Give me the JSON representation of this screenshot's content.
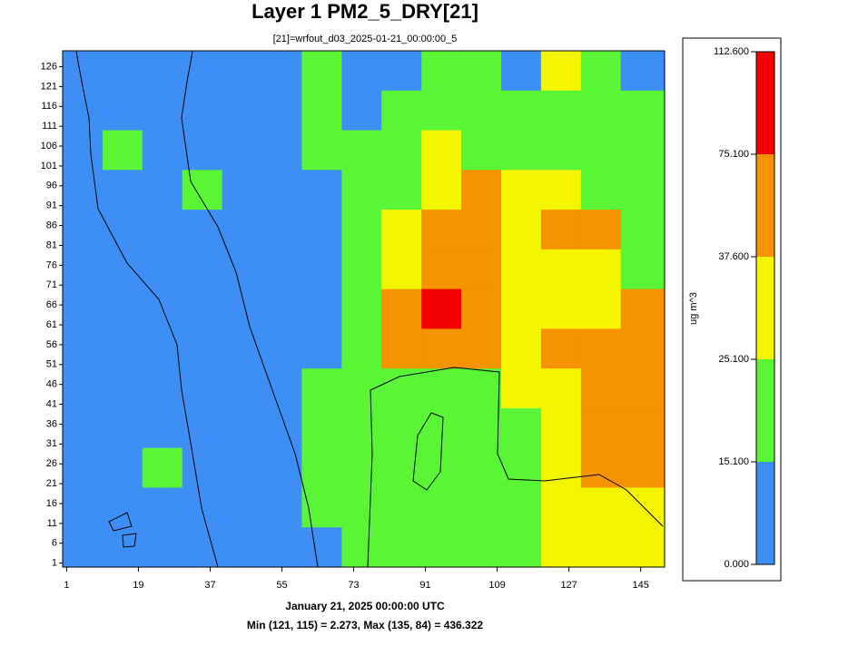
{
  "chart_data": {
    "type": "heatmap",
    "title": "Layer 1 PM2_5_DRY[21]",
    "subtitle": "[21]=wrfout_d03_2025-01-21_00:00:00_5",
    "footer": "January 21, 2025 00:00:00 UTC",
    "stats": "Min (121, 115) = 2.273, Max (135, 84) = 436.322",
    "colorbar_label": "ug m^3",
    "xlim": [
      0,
      151
    ],
    "ylim": [
      0,
      130
    ],
    "xticks": [
      1,
      19,
      37,
      55,
      73,
      91,
      109,
      127,
      145
    ],
    "yticks": [
      1,
      6,
      11,
      16,
      21,
      26,
      31,
      36,
      41,
      46,
      51,
      56,
      61,
      66,
      71,
      76,
      81,
      86,
      91,
      96,
      101,
      106,
      111,
      116,
      121,
      126
    ],
    "levels": [
      {
        "value": 0,
        "label": "0.000"
      },
      {
        "value": 15.1,
        "label": "15.100"
      },
      {
        "value": 25.1,
        "label": "25.100"
      },
      {
        "value": 37.6,
        "label": "37.600"
      },
      {
        "value": 75.1,
        "label": "75.100"
      },
      {
        "value": 112.6,
        "label": "112.600"
      }
    ],
    "colors": [
      "#3d8ff5",
      "#5af534",
      "#f5f500",
      "#f59300",
      "#f50000"
    ],
    "xbins": [
      0,
      10,
      20,
      30,
      40,
      50,
      60,
      70,
      80,
      90,
      100,
      110,
      120,
      130,
      140,
      151
    ],
    "ybins": [
      130,
      120,
      110,
      100,
      90,
      80,
      70,
      60,
      50,
      40,
      30,
      20,
      10,
      0
    ],
    "z": [
      [
        10,
        10,
        10,
        10,
        10,
        10,
        20,
        10,
        10,
        20,
        20,
        10,
        30,
        20,
        10
      ],
      [
        10,
        10,
        10,
        10,
        10,
        10,
        20,
        10,
        20,
        20,
        20,
        20,
        20,
        20,
        20
      ],
      [
        10,
        20,
        10,
        10,
        10,
        10,
        20,
        20,
        20,
        30,
        20,
        20,
        20,
        20,
        20
      ],
      [
        10,
        10,
        10,
        20,
        10,
        10,
        10,
        20,
        20,
        30,
        50,
        30,
        30,
        20,
        20
      ],
      [
        10,
        10,
        10,
        10,
        10,
        10,
        10,
        20,
        30,
        50,
        50,
        30,
        50,
        50,
        20
      ],
      [
        10,
        10,
        10,
        10,
        10,
        10,
        10,
        20,
        30,
        50,
        50,
        30,
        30,
        30,
        20
      ],
      [
        10,
        10,
        10,
        10,
        10,
        10,
        10,
        20,
        50,
        80,
        50,
        30,
        30,
        30,
        50
      ],
      [
        10,
        10,
        10,
        10,
        10,
        10,
        10,
        20,
        50,
        50,
        50,
        30,
        50,
        50,
        50
      ],
      [
        10,
        10,
        10,
        10,
        10,
        10,
        20,
        20,
        20,
        20,
        20,
        30,
        30,
        50,
        50
      ],
      [
        10,
        10,
        10,
        10,
        10,
        10,
        20,
        20,
        20,
        20,
        20,
        20,
        30,
        50,
        50
      ],
      [
        10,
        10,
        20,
        10,
        10,
        10,
        20,
        20,
        20,
        20,
        20,
        20,
        30,
        50,
        50
      ],
      [
        10,
        10,
        10,
        10,
        10,
        10,
        20,
        20,
        20,
        20,
        20,
        20,
        30,
        30,
        30
      ],
      [
        10,
        10,
        10,
        10,
        10,
        10,
        10,
        20,
        20,
        20,
        20,
        20,
        30,
        30,
        30
      ]
    ]
  }
}
